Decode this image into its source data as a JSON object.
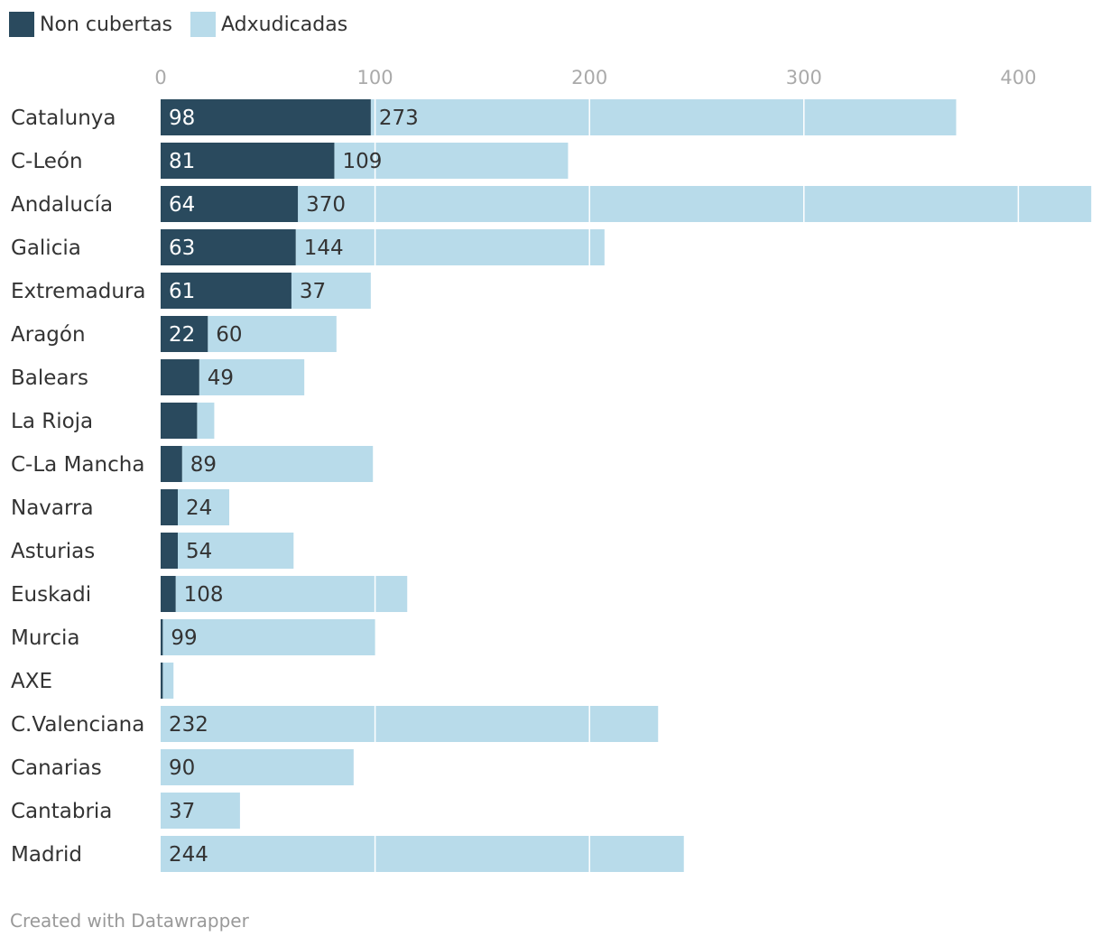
{
  "chart_data": {
    "type": "bar",
    "orientation": "horizontal",
    "stacked": true,
    "legend": {
      "position": "top-left"
    },
    "x_ticks": [
      "0",
      "100",
      "200",
      "300",
      "400"
    ],
    "x_tick_values": [
      0,
      100,
      200,
      300,
      400
    ],
    "xlim": [
      0,
      434
    ],
    "grid": true,
    "categories": [
      "Catalunya",
      "C-León",
      "Andalucía",
      "Galicia",
      "Extremadura",
      "Aragón",
      "Balears",
      "La Rioja",
      "C-La Mancha",
      "Navarra",
      "Asturias",
      "Euskadi",
      "Murcia",
      "AXE",
      "C.Valenciana",
      "Canarias",
      "Cantabria",
      "Madrid"
    ],
    "series": [
      {
        "name": "Non cubertas",
        "color": "#2a4a5e",
        "values": [
          98,
          81,
          64,
          63,
          61,
          22,
          18,
          17,
          10,
          8,
          8,
          7,
          1,
          1,
          0,
          0,
          0,
          0
        ],
        "labels": [
          "98",
          "81",
          "64",
          "63",
          "61",
          "22",
          "",
          "",
          "",
          "",
          "",
          "",
          "",
          "",
          "",
          "",
          "",
          ""
        ]
      },
      {
        "name": "Adxudicadas",
        "color": "#b8dbea",
        "values": [
          273,
          109,
          370,
          144,
          37,
          60,
          49,
          8,
          89,
          24,
          54,
          108,
          99,
          5,
          232,
          90,
          37,
          244
        ],
        "labels": [
          "273",
          "109",
          "370",
          "144",
          "37",
          "60",
          "49",
          "",
          "89",
          "24",
          "54",
          "108",
          "99",
          "",
          "232",
          "90",
          "37",
          "244"
        ]
      }
    ]
  },
  "footer": {
    "credit": "Created with Datawrapper"
  }
}
